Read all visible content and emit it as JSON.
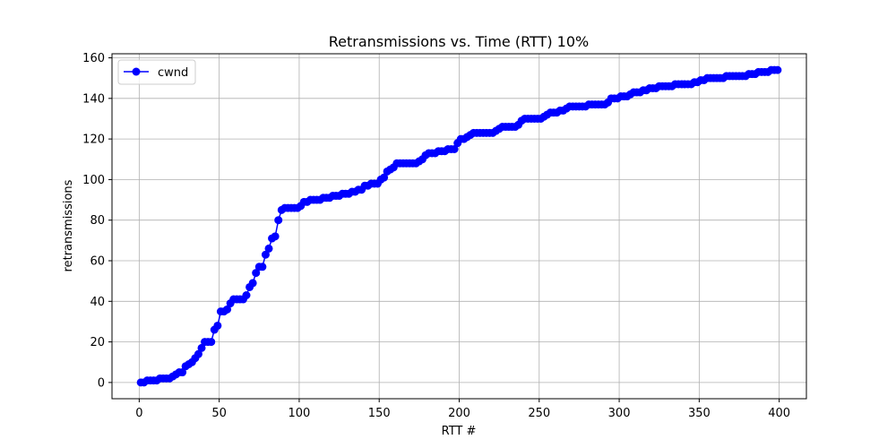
{
  "chart_data": {
    "type": "line",
    "title": "Retransmissions vs. Time (RTT) 10%",
    "xlabel": "RTT #",
    "ylabel": "retransmissions",
    "xlim": [
      -17,
      417
    ],
    "ylim": [
      -8,
      162
    ],
    "xticks": [
      0,
      50,
      100,
      150,
      200,
      250,
      300,
      350,
      400
    ],
    "yticks": [
      0,
      20,
      40,
      60,
      80,
      100,
      120,
      140,
      160
    ],
    "xtick_labels": [
      "0",
      "50",
      "100",
      "150",
      "200",
      "250",
      "300",
      "350",
      "400"
    ],
    "ytick_labels": [
      "0",
      "20",
      "40",
      "60",
      "80",
      "100",
      "120",
      "140",
      "160"
    ],
    "grid": true,
    "legend_position": "top-left",
    "series": [
      {
        "name": "cwnd",
        "color": "#0000ff",
        "marker": "circle",
        "points": [
          [
            1,
            0
          ],
          [
            3,
            0
          ],
          [
            5,
            1
          ],
          [
            7,
            1
          ],
          [
            9,
            1
          ],
          [
            11,
            1
          ],
          [
            13,
            2
          ],
          [
            15,
            2
          ],
          [
            17,
            2
          ],
          [
            19,
            2
          ],
          [
            21,
            3
          ],
          [
            23,
            4
          ],
          [
            25,
            5
          ],
          [
            27,
            5
          ],
          [
            29,
            8
          ],
          [
            31,
            9
          ],
          [
            33,
            10
          ],
          [
            35,
            12
          ],
          [
            37,
            14
          ],
          [
            39,
            17
          ],
          [
            41,
            20
          ],
          [
            43,
            20
          ],
          [
            45,
            20
          ],
          [
            47,
            26
          ],
          [
            49,
            28
          ],
          [
            51,
            35
          ],
          [
            53,
            35
          ],
          [
            55,
            36
          ],
          [
            57,
            39
          ],
          [
            59,
            41
          ],
          [
            61,
            41
          ],
          [
            63,
            41
          ],
          [
            65,
            41
          ],
          [
            67,
            43
          ],
          [
            69,
            47
          ],
          [
            71,
            49
          ],
          [
            73,
            54
          ],
          [
            75,
            57
          ],
          [
            77,
            57
          ],
          [
            79,
            63
          ],
          [
            81,
            66
          ],
          [
            83,
            71
          ],
          [
            85,
            72
          ],
          [
            87,
            80
          ],
          [
            89,
            85
          ],
          [
            91,
            86
          ],
          [
            93,
            86
          ],
          [
            95,
            86
          ],
          [
            97,
            86
          ],
          [
            99,
            86
          ],
          [
            101,
            87
          ],
          [
            103,
            89
          ],
          [
            105,
            89
          ],
          [
            107,
            90
          ],
          [
            109,
            90
          ],
          [
            111,
            90
          ],
          [
            113,
            90
          ],
          [
            115,
            91
          ],
          [
            117,
            91
          ],
          [
            119,
            91
          ],
          [
            121,
            92
          ],
          [
            123,
            92
          ],
          [
            125,
            92
          ],
          [
            127,
            93
          ],
          [
            129,
            93
          ],
          [
            131,
            93
          ],
          [
            133,
            94
          ],
          [
            135,
            94
          ],
          [
            137,
            95
          ],
          [
            139,
            95
          ],
          [
            141,
            97
          ],
          [
            143,
            97
          ],
          [
            145,
            98
          ],
          [
            147,
            98
          ],
          [
            149,
            98
          ],
          [
            151,
            100
          ],
          [
            153,
            101
          ],
          [
            155,
            104
          ],
          [
            157,
            105
          ],
          [
            159,
            106
          ],
          [
            161,
            108
          ],
          [
            163,
            108
          ],
          [
            165,
            108
          ],
          [
            167,
            108
          ],
          [
            169,
            108
          ],
          [
            171,
            108
          ],
          [
            173,
            108
          ],
          [
            175,
            109
          ],
          [
            177,
            110
          ],
          [
            179,
            112
          ],
          [
            181,
            113
          ],
          [
            183,
            113
          ],
          [
            185,
            113
          ],
          [
            187,
            114
          ],
          [
            189,
            114
          ],
          [
            191,
            114
          ],
          [
            193,
            115
          ],
          [
            195,
            115
          ],
          [
            197,
            115
          ],
          [
            199,
            118
          ],
          [
            201,
            120
          ],
          [
            203,
            120
          ],
          [
            205,
            121
          ],
          [
            207,
            122
          ],
          [
            209,
            123
          ],
          [
            211,
            123
          ],
          [
            213,
            123
          ],
          [
            215,
            123
          ],
          [
            217,
            123
          ],
          [
            219,
            123
          ],
          [
            221,
            123
          ],
          [
            223,
            124
          ],
          [
            225,
            125
          ],
          [
            227,
            126
          ],
          [
            229,
            126
          ],
          [
            231,
            126
          ],
          [
            233,
            126
          ],
          [
            235,
            126
          ],
          [
            237,
            127
          ],
          [
            239,
            129
          ],
          [
            241,
            130
          ],
          [
            243,
            130
          ],
          [
            245,
            130
          ],
          [
            247,
            130
          ],
          [
            249,
            130
          ],
          [
            251,
            130
          ],
          [
            253,
            131
          ],
          [
            255,
            132
          ],
          [
            257,
            133
          ],
          [
            259,
            133
          ],
          [
            261,
            133
          ],
          [
            263,
            134
          ],
          [
            265,
            134
          ],
          [
            267,
            135
          ],
          [
            269,
            136
          ],
          [
            271,
            136
          ],
          [
            273,
            136
          ],
          [
            275,
            136
          ],
          [
            277,
            136
          ],
          [
            279,
            136
          ],
          [
            281,
            137
          ],
          [
            283,
            137
          ],
          [
            285,
            137
          ],
          [
            287,
            137
          ],
          [
            289,
            137
          ],
          [
            291,
            137
          ],
          [
            293,
            138
          ],
          [
            295,
            140
          ],
          [
            297,
            140
          ],
          [
            299,
            140
          ],
          [
            301,
            141
          ],
          [
            303,
            141
          ],
          [
            305,
            141
          ],
          [
            307,
            142
          ],
          [
            309,
            143
          ],
          [
            311,
            143
          ],
          [
            313,
            143
          ],
          [
            315,
            144
          ],
          [
            317,
            144
          ],
          [
            319,
            145
          ],
          [
            321,
            145
          ],
          [
            323,
            145
          ],
          [
            325,
            146
          ],
          [
            327,
            146
          ],
          [
            329,
            146
          ],
          [
            331,
            146
          ],
          [
            333,
            146
          ],
          [
            335,
            147
          ],
          [
            337,
            147
          ],
          [
            339,
            147
          ],
          [
            341,
            147
          ],
          [
            343,
            147
          ],
          [
            345,
            147
          ],
          [
            347,
            148
          ],
          [
            349,
            148
          ],
          [
            351,
            149
          ],
          [
            353,
            149
          ],
          [
            355,
            150
          ],
          [
            357,
            150
          ],
          [
            359,
            150
          ],
          [
            361,
            150
          ],
          [
            363,
            150
          ],
          [
            365,
            150
          ],
          [
            367,
            151
          ],
          [
            369,
            151
          ],
          [
            371,
            151
          ],
          [
            373,
            151
          ],
          [
            375,
            151
          ],
          [
            377,
            151
          ],
          [
            379,
            151
          ],
          [
            381,
            152
          ],
          [
            383,
            152
          ],
          [
            385,
            152
          ],
          [
            387,
            153
          ],
          [
            389,
            153
          ],
          [
            391,
            153
          ],
          [
            393,
            153
          ],
          [
            395,
            154
          ],
          [
            397,
            154
          ],
          [
            399,
            154
          ]
        ]
      }
    ]
  }
}
